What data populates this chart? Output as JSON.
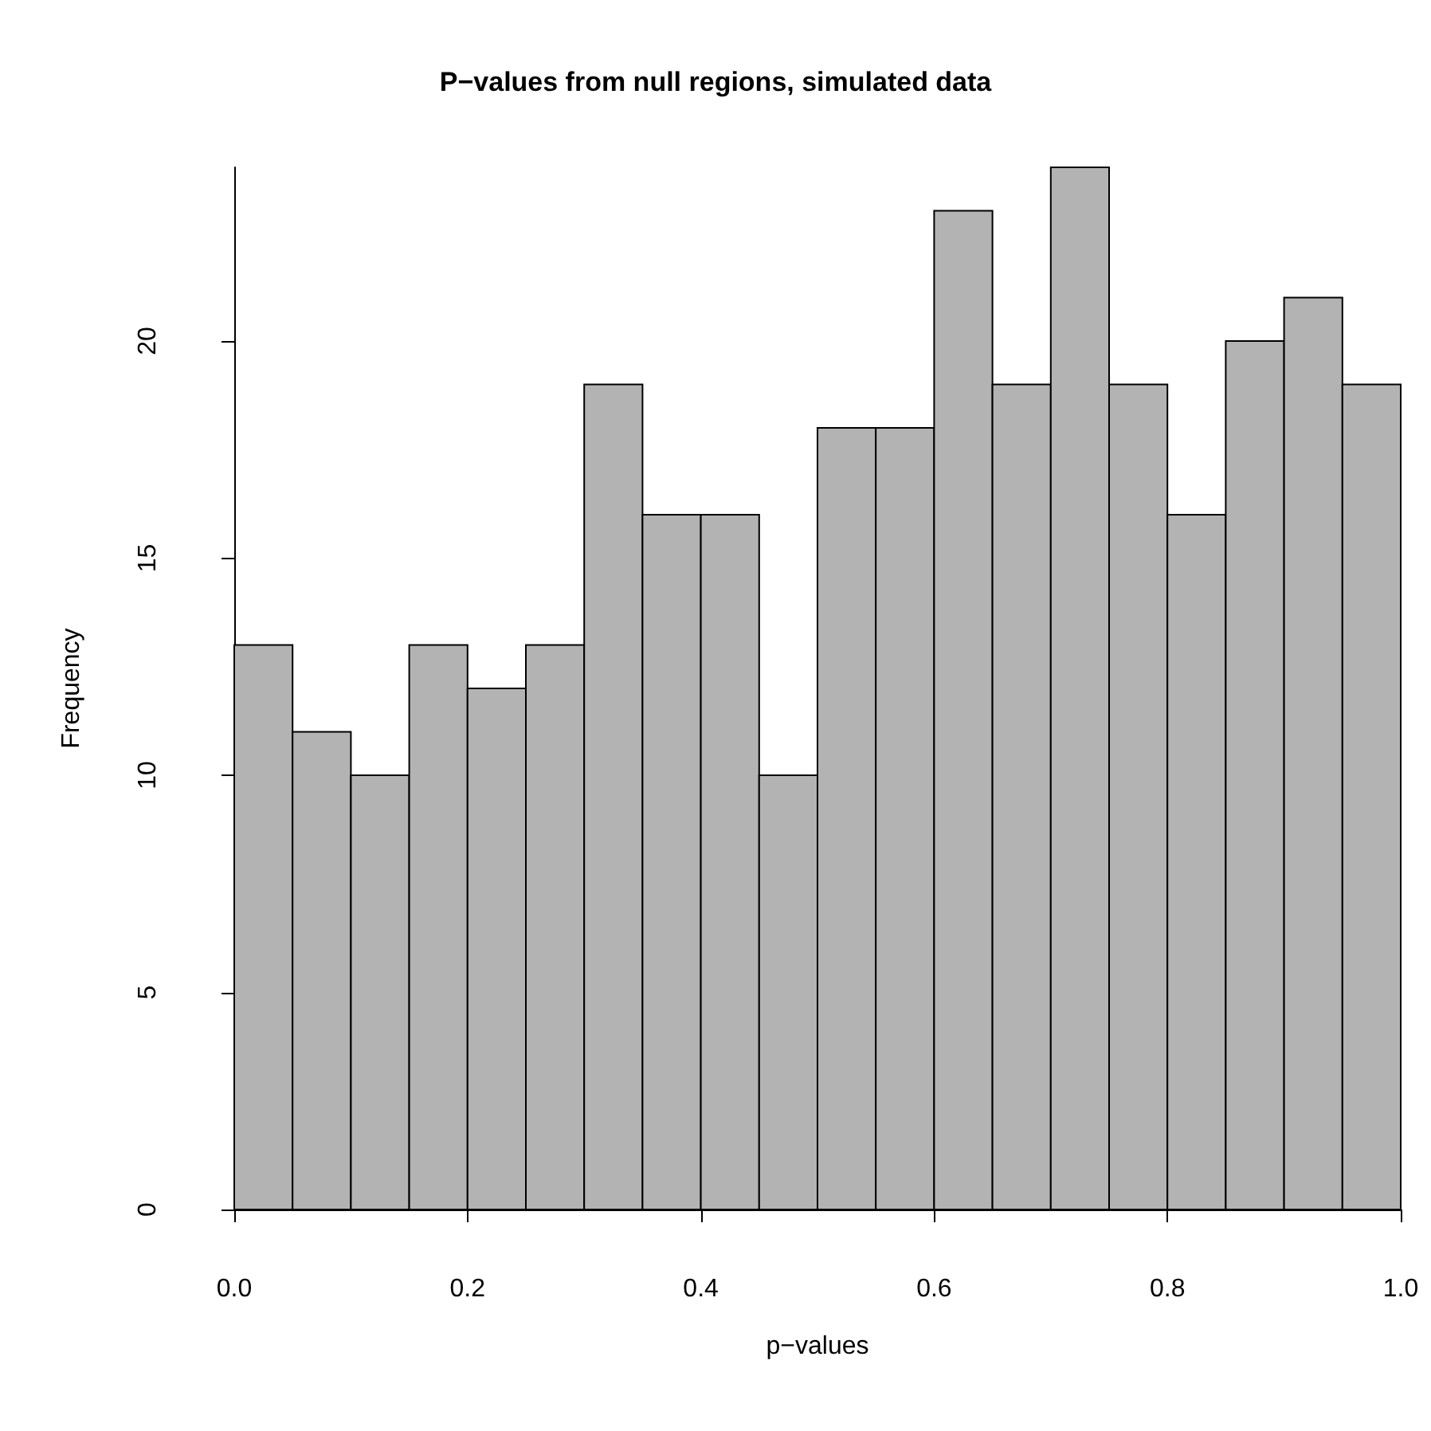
{
  "chart_data": {
    "type": "histogram",
    "title": "P−values from null regions, simulated data",
    "xlabel": "p−values",
    "ylabel": "Frequency",
    "bins": [
      0,
      0.05,
      0.1,
      0.15,
      0.2,
      0.25,
      0.3,
      0.35,
      0.4,
      0.45,
      0.5,
      0.55,
      0.6,
      0.65,
      0.7,
      0.75,
      0.8,
      0.85,
      0.9,
      0.95,
      1
    ],
    "values": [
      13,
      11,
      10,
      13,
      12,
      13,
      19,
      16,
      16,
      10,
      18,
      18,
      23,
      19,
      24,
      19,
      16,
      20,
      21,
      19
    ],
    "color": "#b3b3b3",
    "xlim": [
      0,
      1
    ],
    "xticks": [
      {
        "value": 0,
        "label": "0.0"
      },
      {
        "value": 0.2,
        "label": "0.2"
      },
      {
        "value": 0.4,
        "label": "0.4"
      },
      {
        "value": 0.6,
        "label": "0.6"
      },
      {
        "value": 0.8,
        "label": "0.8"
      },
      {
        "value": 1,
        "label": "1.0"
      }
    ],
    "ylim": [
      0,
      24
    ],
    "yticks": [
      0,
      5,
      10,
      15,
      20
    ],
    "grid": false
  }
}
